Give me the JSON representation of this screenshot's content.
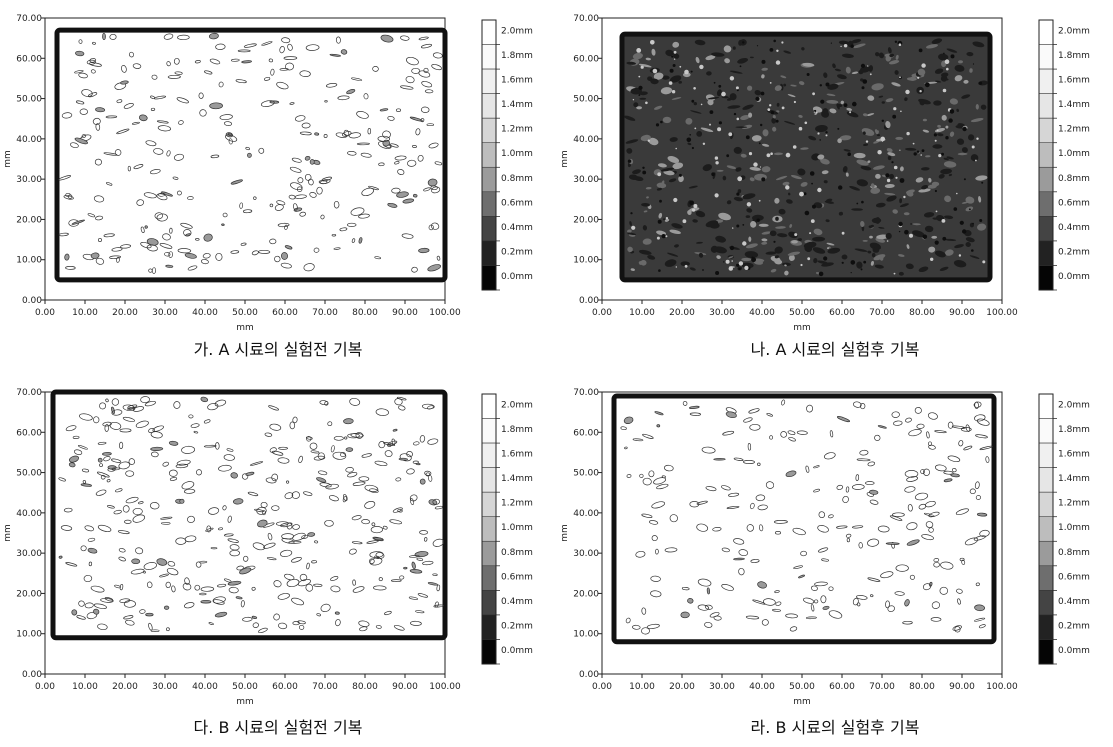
{
  "chart_data": [
    {
      "type": "heatmap",
      "caption": "가. A 시료의 실험전 기복",
      "xlabel": "mm",
      "ylabel": "mm",
      "xlim": [
        0,
        100
      ],
      "ylim": [
        0,
        70
      ],
      "x_ticks": [
        "0.00",
        "10.00",
        "20.00",
        "30.00",
        "40.00",
        "50.00",
        "60.00",
        "70.00",
        "80.00",
        "90.00",
        "100.00"
      ],
      "y_ticks": [
        "0.00",
        "10.00",
        "20.00",
        "30.00",
        "40.00",
        "50.00",
        "60.00",
        "70.00"
      ],
      "sample_extent": {
        "x": [
          3,
          100
        ],
        "y": [
          5,
          67
        ]
      },
      "legend_labels": [
        "2.0mm",
        "1.8mm",
        "1.6mm",
        "1.4mm",
        "1.2mm",
        "1.0mm",
        "0.8mm",
        "0.6mm",
        "0.4mm",
        "0.2mm",
        "0.0mm"
      ],
      "surface": "light",
      "roughness": 0.55
    },
    {
      "type": "heatmap",
      "caption": "나. A 시료의 실험후 기복",
      "xlabel": "mm",
      "ylabel": "mm",
      "xlim": [
        0,
        100
      ],
      "ylim": [
        0,
        70
      ],
      "x_ticks": [
        "0.00",
        "10.00",
        "20.00",
        "30.00",
        "40.00",
        "50.00",
        "60.00",
        "70.00",
        "80.00",
        "90.00",
        "100.00"
      ],
      "y_ticks": [
        "0.00",
        "10.00",
        "20.00",
        "30.00",
        "40.00",
        "50.00",
        "60.00",
        "70.00"
      ],
      "sample_extent": {
        "x": [
          5,
          97
        ],
        "y": [
          5,
          66
        ]
      },
      "legend_labels": [
        "2.0mm",
        "1.8mm",
        "1.6mm",
        "1.4mm",
        "1.2mm",
        "1.0mm",
        "0.8mm",
        "0.6mm",
        "0.4mm",
        "0.2mm",
        "0.0mm"
      ],
      "surface": "dark",
      "roughness": 0.9
    },
    {
      "type": "heatmap",
      "caption": "다. B 시료의 실험전 기복",
      "xlabel": "mm",
      "ylabel": "mm",
      "xlim": [
        0,
        100
      ],
      "ylim": [
        0,
        70
      ],
      "x_ticks": [
        "0.00",
        "10.00",
        "20.00",
        "30.00",
        "40.00",
        "50.00",
        "60.00",
        "70.00",
        "80.00",
        "90.00",
        "100.00"
      ],
      "y_ticks": [
        "0.00",
        "10.00",
        "20.00",
        "30.00",
        "40.00",
        "50.00",
        "60.00",
        "70.00"
      ],
      "sample_extent": {
        "x": [
          2,
          100
        ],
        "y": [
          9,
          70
        ]
      },
      "legend_labels": [
        "2.0mm",
        "1.8mm",
        "1.6mm",
        "1.4mm",
        "1.2mm",
        "1.0mm",
        "0.8mm",
        "0.6mm",
        "0.4mm",
        "0.2mm",
        "0.0mm"
      ],
      "surface": "light",
      "roughness": 0.7
    },
    {
      "type": "heatmap",
      "caption": "라. B 시료의 실험후 기복",
      "xlabel": "mm",
      "ylabel": "mm",
      "xlim": [
        0,
        100
      ],
      "ylim": [
        0,
        70
      ],
      "x_ticks": [
        "0.00",
        "10.00",
        "20.00",
        "30.00",
        "40.00",
        "50.00",
        "60.00",
        "70.00",
        "80.00",
        "90.00",
        "100.00"
      ],
      "y_ticks": [
        "0.00",
        "10.00",
        "20.00",
        "30.00",
        "40.00",
        "50.00",
        "60.00",
        "70.00"
      ],
      "sample_extent": {
        "x": [
          3,
          98
        ],
        "y": [
          8,
          69
        ]
      },
      "legend_labels": [
        "2.0mm",
        "1.8mm",
        "1.6mm",
        "1.4mm",
        "1.2mm",
        "1.0mm",
        "0.8mm",
        "0.6mm",
        "0.4mm",
        "0.2mm",
        "0.0mm"
      ],
      "surface": "light",
      "roughness": 0.45
    }
  ]
}
